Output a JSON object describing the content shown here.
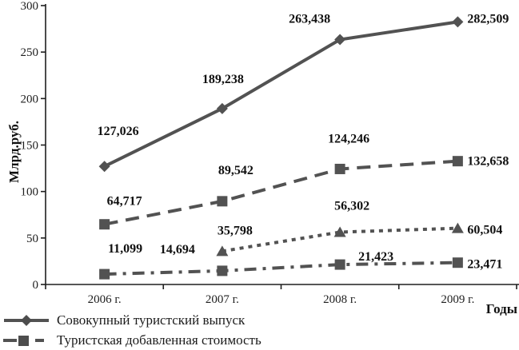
{
  "chart_data": {
    "type": "line",
    "title": "",
    "xlabel": "Годы",
    "ylabel": "Млрд.руб.",
    "categories": [
      "2006 г.",
      "2007 г.",
      "2008 г.",
      "2009 г."
    ],
    "ylim": [
      0,
      300
    ],
    "yticks": [
      0,
      50,
      100,
      150,
      200,
      250,
      300
    ],
    "grid": false,
    "color": "#525252",
    "axis_color": "#1e1e1e",
    "data_label_color": "#101010",
    "series": [
      {
        "name": "Совокупный туристский выпуск",
        "marker": "diamond",
        "line": "solid",
        "values": [
          127.026,
          189.238,
          263.438,
          282.509
        ],
        "labels": [
          "127,026",
          "189,238",
          "263,438",
          "282,509"
        ],
        "label_pos": [
          [
            17,
            -44,
            "middle"
          ],
          [
            1,
            -37,
            "middle"
          ],
          [
            -38,
            -26,
            "middle"
          ],
          [
            12,
            -4,
            "start"
          ]
        ]
      },
      {
        "name": "Туристская добавленная стоимость",
        "marker": "square",
        "line": "long-dash",
        "values": [
          64.717,
          89.542,
          124.246,
          132.658
        ],
        "labels": [
          "64,717",
          "89,542",
          "124,246",
          "132,658"
        ],
        "label_pos": [
          [
            25,
            -29,
            "middle"
          ],
          [
            17,
            -39,
            "middle"
          ],
          [
            11,
            -38,
            "middle"
          ],
          [
            12,
            0,
            "start"
          ]
        ]
      },
      {
        "name": "",
        "marker": "triangle",
        "line": "dotted",
        "values": [
          null,
          35.798,
          56.302,
          60.504
        ],
        "labels": [
          null,
          "35,798",
          "56,302",
          "60,504"
        ],
        "label_pos": [
          null,
          [
            16,
            -26,
            "middle"
          ],
          [
            15,
            -33,
            "middle"
          ],
          [
            12,
            2,
            "start"
          ]
        ]
      },
      {
        "name": "",
        "marker": "square",
        "line": "dash-dot",
        "values": [
          11.099,
          14.694,
          21.423,
          23.471
        ],
        "labels": [
          "11,099",
          "14,694",
          "21,423",
          "23,471"
        ],
        "label_pos": [
          [
            26,
            -32,
            "middle"
          ],
          [
            -56,
            -27,
            "middle"
          ],
          [
            45,
            -10,
            "middle"
          ],
          [
            12,
            2,
            "start"
          ]
        ]
      }
    ],
    "legend": {
      "position": "bottom-left",
      "entries": [
        {
          "label": "Совокупный туристский выпуск",
          "marker": "diamond",
          "line": "solid"
        },
        {
          "label": "Туристская добавленная стоимость",
          "marker": "square",
          "line": "long-dash"
        }
      ]
    }
  }
}
